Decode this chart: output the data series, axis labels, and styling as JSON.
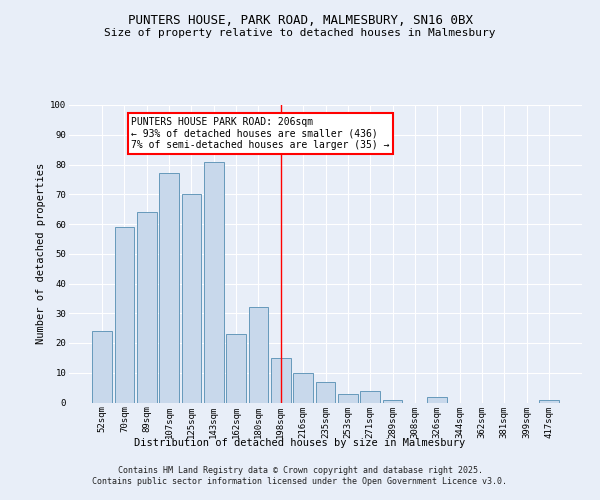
{
  "title1": "PUNTERS HOUSE, PARK ROAD, MALMESBURY, SN16 0BX",
  "title2": "Size of property relative to detached houses in Malmesbury",
  "xlabel": "Distribution of detached houses by size in Malmesbury",
  "ylabel": "Number of detached properties",
  "categories": [
    "52sqm",
    "70sqm",
    "89sqm",
    "107sqm",
    "125sqm",
    "143sqm",
    "162sqm",
    "180sqm",
    "198sqm",
    "216sqm",
    "235sqm",
    "253sqm",
    "271sqm",
    "289sqm",
    "308sqm",
    "326sqm",
    "344sqm",
    "362sqm",
    "381sqm",
    "399sqm",
    "417sqm"
  ],
  "values": [
    24,
    59,
    64,
    77,
    70,
    81,
    23,
    32,
    15,
    10,
    7,
    3,
    4,
    1,
    0,
    2,
    0,
    0,
    0,
    0,
    1
  ],
  "bar_color": "#c8d8eb",
  "bar_edge_color": "#6699bb",
  "vline_x": 8,
  "vline_color": "red",
  "annotation_text": "PUNTERS HOUSE PARK ROAD: 206sqm\n← 93% of detached houses are smaller (436)\n7% of semi-detached houses are larger (35) →",
  "annotation_box_color": "white",
  "annotation_box_edge": "red",
  "ylim": [
    0,
    100
  ],
  "yticks": [
    0,
    10,
    20,
    30,
    40,
    50,
    60,
    70,
    80,
    90,
    100
  ],
  "footer1": "Contains HM Land Registry data © Crown copyright and database right 2025.",
  "footer2": "Contains public sector information licensed under the Open Government Licence v3.0.",
  "bg_color": "#e8eef8",
  "plot_bg_color": "#e8eef8",
  "grid_color": "#ffffff",
  "title_fontsize": 9,
  "subtitle_fontsize": 8,
  "ylabel_fontsize": 7.5,
  "xlabel_fontsize": 7.5,
  "tick_fontsize": 6.5,
  "footer_fontsize": 6,
  "annot_fontsize": 7
}
